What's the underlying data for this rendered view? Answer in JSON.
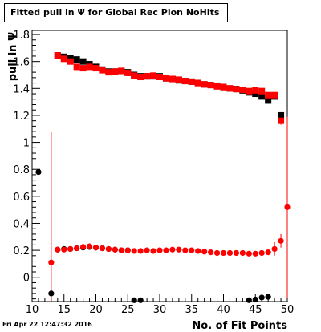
{
  "chart_data": {
    "type": "scatter",
    "title": "Fitted pull in Ψ for Global Rec Pion NoHits",
    "xlabel": "No. of Fit Points",
    "ylabel": "pull in Ψ",
    "timestamp": "Fri Apr 22 12:47:32 2016",
    "xlim": [
      10,
      50
    ],
    "ylim": [
      -0.18,
      1.83
    ],
    "xticks": [
      10,
      15,
      20,
      25,
      30,
      35,
      40,
      45,
      50
    ],
    "yticks": [
      0,
      0.2,
      0.4,
      0.6,
      0.8,
      1,
      1.2,
      1.4,
      1.6,
      1.8
    ],
    "ytick_labels": [
      "0",
      "0.2",
      "0.4",
      "0.6",
      "0.8",
      "1",
      "1.2",
      "1.4",
      "1.6",
      "1.8"
    ],
    "grid": false,
    "colors": {
      "black_series": "#000000",
      "red_series": "#ff0000"
    },
    "series": [
      {
        "color": "black",
        "marker": "square",
        "points": [
          {
            "x": 14,
            "y": 1.645
          },
          {
            "x": 15,
            "y": 1.635
          },
          {
            "x": 16,
            "y": 1.625
          },
          {
            "x": 17,
            "y": 1.615
          },
          {
            "x": 18,
            "y": 1.6
          },
          {
            "x": 19,
            "y": 1.58
          },
          {
            "x": 20,
            "y": 1.56
          },
          {
            "x": 21,
            "y": 1.54
          },
          {
            "x": 22,
            "y": 1.525
          },
          {
            "x": 23,
            "y": 1.525
          },
          {
            "x": 24,
            "y": 1.53
          },
          {
            "x": 25,
            "y": 1.52
          },
          {
            "x": 26,
            "y": 1.5
          },
          {
            "x": 27,
            "y": 1.49
          },
          {
            "x": 28,
            "y": 1.49
          },
          {
            "x": 29,
            "y": 1.49
          },
          {
            "x": 30,
            "y": 1.49
          },
          {
            "x": 31,
            "y": 1.475
          },
          {
            "x": 32,
            "y": 1.47
          },
          {
            "x": 33,
            "y": 1.46
          },
          {
            "x": 34,
            "y": 1.455
          },
          {
            "x": 35,
            "y": 1.45
          },
          {
            "x": 36,
            "y": 1.44
          },
          {
            "x": 37,
            "y": 1.43
          },
          {
            "x": 38,
            "y": 1.425
          },
          {
            "x": 39,
            "y": 1.42
          },
          {
            "x": 40,
            "y": 1.41
          },
          {
            "x": 41,
            "y": 1.4
          },
          {
            "x": 42,
            "y": 1.395
          },
          {
            "x": 43,
            "y": 1.385
          },
          {
            "x": 44,
            "y": 1.37
          },
          {
            "x": 45,
            "y": 1.36
          },
          {
            "x": 46,
            "y": 1.34
          },
          {
            "x": 47,
            "y": 1.31
          },
          {
            "x": 48,
            "y": 1.34
          },
          {
            "x": 49,
            "y": 1.2
          }
        ]
      },
      {
        "color": "red",
        "marker": "square",
        "points": [
          {
            "x": 14,
            "y": 1.645
          },
          {
            "x": 15,
            "y": 1.62
          },
          {
            "x": 16,
            "y": 1.6
          },
          {
            "x": 17,
            "y": 1.56
          },
          {
            "x": 18,
            "y": 1.55
          },
          {
            "x": 19,
            "y": 1.56
          },
          {
            "x": 20,
            "y": 1.55
          },
          {
            "x": 21,
            "y": 1.535
          },
          {
            "x": 22,
            "y": 1.52
          },
          {
            "x": 23,
            "y": 1.525
          },
          {
            "x": 24,
            "y": 1.53
          },
          {
            "x": 25,
            "y": 1.515
          },
          {
            "x": 26,
            "y": 1.495
          },
          {
            "x": 27,
            "y": 1.485
          },
          {
            "x": 28,
            "y": 1.49
          },
          {
            "x": 29,
            "y": 1.495
          },
          {
            "x": 30,
            "y": 1.485
          },
          {
            "x": 31,
            "y": 1.475
          },
          {
            "x": 32,
            "y": 1.47
          },
          {
            "x": 33,
            "y": 1.465
          },
          {
            "x": 34,
            "y": 1.455
          },
          {
            "x": 35,
            "y": 1.45
          },
          {
            "x": 36,
            "y": 1.44
          },
          {
            "x": 37,
            "y": 1.43
          },
          {
            "x": 38,
            "y": 1.425
          },
          {
            "x": 39,
            "y": 1.415
          },
          {
            "x": 40,
            "y": 1.41
          },
          {
            "x": 41,
            "y": 1.4
          },
          {
            "x": 42,
            "y": 1.395
          },
          {
            "x": 43,
            "y": 1.39
          },
          {
            "x": 44,
            "y": 1.38
          },
          {
            "x": 45,
            "y": 1.385
          },
          {
            "x": 46,
            "y": 1.38
          },
          {
            "x": 47,
            "y": 1.35
          },
          {
            "x": 48,
            "y": 1.35
          },
          {
            "x": 49,
            "y": 1.16,
            "err": 0.03
          }
        ]
      },
      {
        "color": "black",
        "marker": "circle",
        "points": [
          {
            "x": 11,
            "y": 0.78
          },
          {
            "x": 13,
            "y": -0.12
          },
          {
            "x": 14,
            "y": 0.205
          },
          {
            "x": 15,
            "y": 0.21
          },
          {
            "x": 16,
            "y": 0.21
          },
          {
            "x": 17,
            "y": 0.215
          },
          {
            "x": 18,
            "y": 0.22
          },
          {
            "x": 19,
            "y": 0.225
          },
          {
            "x": 20,
            "y": 0.22
          },
          {
            "x": 21,
            "y": 0.215
          },
          {
            "x": 22,
            "y": 0.21
          },
          {
            "x": 23,
            "y": 0.205
          },
          {
            "x": 24,
            "y": 0.2
          },
          {
            "x": 25,
            "y": 0.2
          },
          {
            "x": 26,
            "y": -0.17
          },
          {
            "x": 27,
            "y": -0.17
          },
          {
            "x": 44,
            "y": -0.17
          },
          {
            "x": 45,
            "y": -0.165
          },
          {
            "x": 46,
            "y": -0.15
          },
          {
            "x": 47,
            "y": -0.145
          }
        ]
      },
      {
        "color": "red",
        "marker": "circle",
        "points": [
          {
            "x": 13,
            "y": 0.11,
            "err": 0.97
          },
          {
            "x": 14,
            "y": 0.205
          },
          {
            "x": 15,
            "y": 0.205
          },
          {
            "x": 16,
            "y": 0.21
          },
          {
            "x": 17,
            "y": 0.215
          },
          {
            "x": 18,
            "y": 0.225
          },
          {
            "x": 19,
            "y": 0.23
          },
          {
            "x": 20,
            "y": 0.22
          },
          {
            "x": 21,
            "y": 0.215
          },
          {
            "x": 22,
            "y": 0.21
          },
          {
            "x": 23,
            "y": 0.205
          },
          {
            "x": 24,
            "y": 0.2
          },
          {
            "x": 25,
            "y": 0.2
          },
          {
            "x": 26,
            "y": 0.195
          },
          {
            "x": 27,
            "y": 0.195
          },
          {
            "x": 28,
            "y": 0.2
          },
          {
            "x": 29,
            "y": 0.195
          },
          {
            "x": 30,
            "y": 0.2
          },
          {
            "x": 31,
            "y": 0.2
          },
          {
            "x": 32,
            "y": 0.205
          },
          {
            "x": 33,
            "y": 0.205
          },
          {
            "x": 34,
            "y": 0.2
          },
          {
            "x": 35,
            "y": 0.2
          },
          {
            "x": 36,
            "y": 0.195
          },
          {
            "x": 37,
            "y": 0.19
          },
          {
            "x": 38,
            "y": 0.185
          },
          {
            "x": 39,
            "y": 0.18
          },
          {
            "x": 40,
            "y": 0.18
          },
          {
            "x": 41,
            "y": 0.18
          },
          {
            "x": 42,
            "y": 0.18
          },
          {
            "x": 43,
            "y": 0.18
          },
          {
            "x": 44,
            "y": 0.175
          },
          {
            "x": 45,
            "y": 0.175
          },
          {
            "x": 46,
            "y": 0.18
          },
          {
            "x": 47,
            "y": 0.185
          },
          {
            "x": 48,
            "y": 0.21,
            "err": 0.05
          },
          {
            "x": 49,
            "y": 0.27,
            "err": 0.05
          },
          {
            "x": 50,
            "y": 0.52,
            "err": 0.67
          }
        ]
      }
    ]
  }
}
